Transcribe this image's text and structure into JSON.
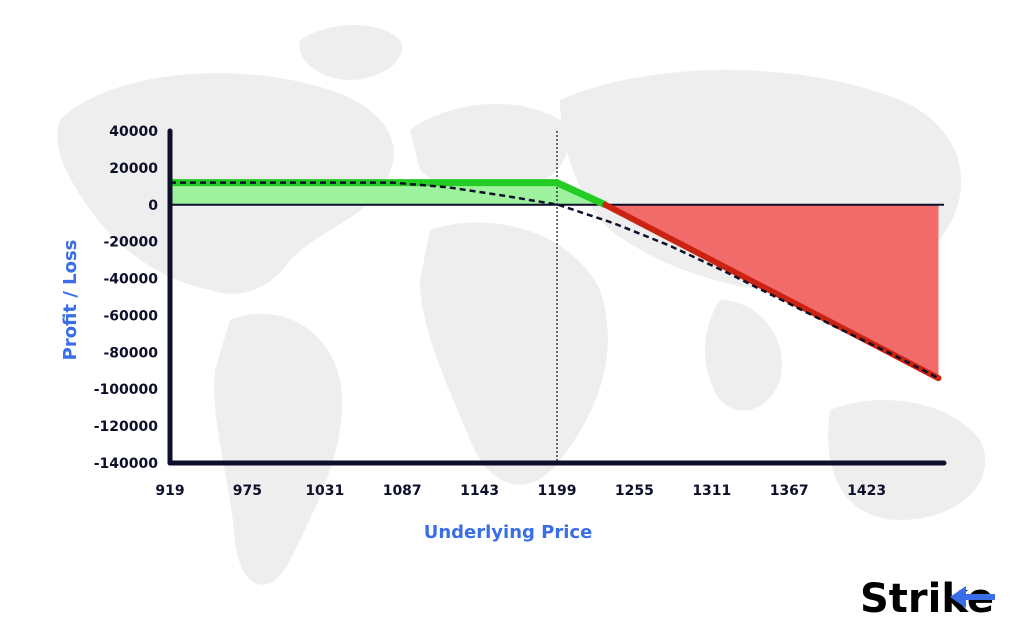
{
  "chart_data": {
    "type": "line",
    "xlabel": "Underlying Price",
    "ylabel": "Profit / Loss",
    "x_ticks": [
      919,
      975,
      1031,
      1087,
      1143,
      1199,
      1255,
      1311,
      1367,
      1423
    ],
    "y_ticks": [
      40000,
      20000,
      0,
      -20000,
      -40000,
      -60000,
      -80000,
      -100000,
      -120000,
      -140000
    ],
    "xlim": [
      919,
      1479
    ],
    "ylim": [
      -140000,
      40000
    ],
    "grid": false,
    "reference_line_x": 1199,
    "series": [
      {
        "style": "solid",
        "x": [
          919,
          1199,
          1234,
          1475
        ],
        "y": [
          12000,
          12000,
          0,
          -94000
        ]
      },
      {
        "style": "dashed",
        "x": [
          919,
          1080,
          1120,
          1160,
          1200,
          1240,
          1280,
          1320,
          1360,
          1400,
          1440,
          1475
        ],
        "y": [
          12000,
          12000,
          9500,
          5000,
          0,
          -10000,
          -22000,
          -36000,
          -51000,
          -66000,
          -80500,
          -94000
        ]
      }
    ],
    "colors": {
      "profit": "#22cc22",
      "profit_fill": "#9ef29e",
      "loss": "#cc2211",
      "loss_fill": "#f26b6b",
      "axis": "#0d0f2b",
      "axis_title": "#3a6ee8"
    }
  },
  "brand": {
    "logo_text": "Strike",
    "icon": "arrow-left-icon",
    "accent": "#3a6ee8"
  }
}
